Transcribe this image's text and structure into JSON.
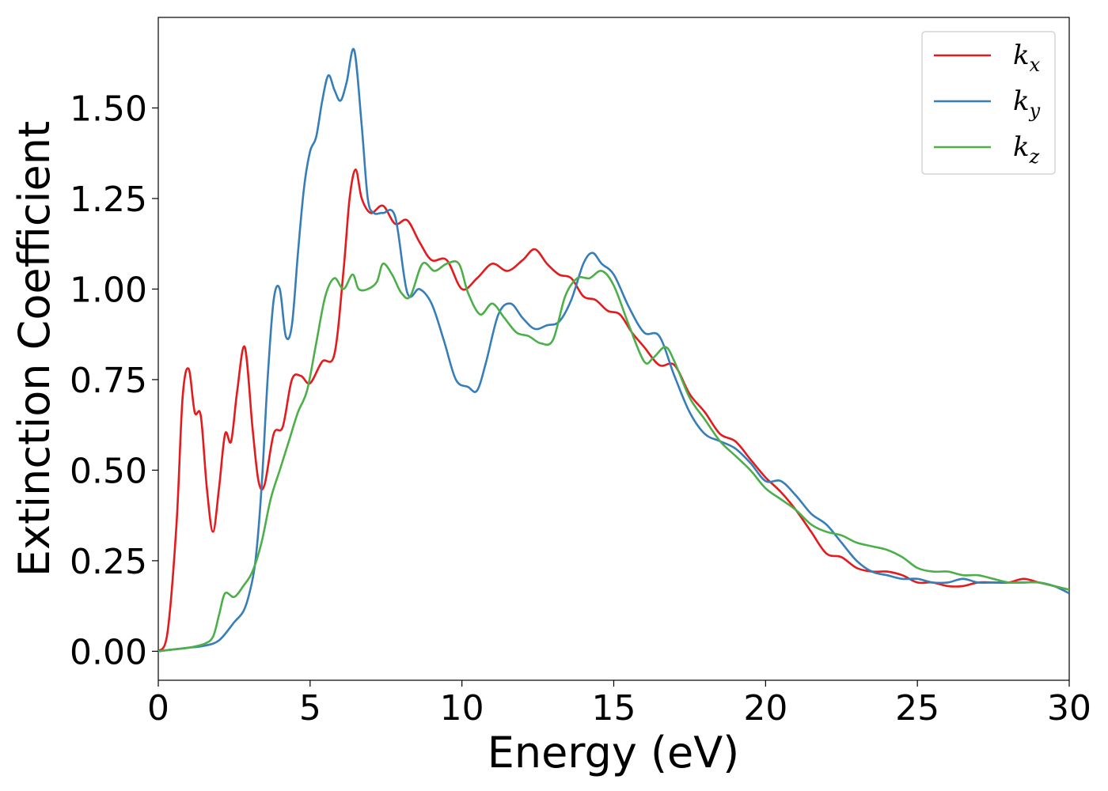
{
  "chart_data": {
    "type": "line",
    "xlabel": "Energy (eV)",
    "ylabel": "Extinction Coefficient",
    "xlim": [
      0,
      30
    ],
    "ylim": [
      -0.08,
      1.75
    ],
    "xticks": [
      0,
      5,
      10,
      15,
      20,
      25,
      30
    ],
    "xtick_labels": [
      "0",
      "5",
      "10",
      "15",
      "20",
      "25",
      "30"
    ],
    "yticks": [
      0,
      0.25,
      0.5,
      0.75,
      1.0,
      1.25,
      1.5
    ],
    "ytick_labels": [
      "0.00",
      "0.25",
      "0.50",
      "0.75",
      "1.00",
      "1.25",
      "1.50"
    ],
    "grid": false,
    "legend_position": "top-right",
    "series": [
      {
        "name": "kx",
        "label_main": "k",
        "label_sub": "x",
        "color": "#e41a1c",
        "x": [
          0,
          0.3,
          0.6,
          0.8,
          1.0,
          1.2,
          1.4,
          1.6,
          1.8,
          2.0,
          2.2,
          2.4,
          2.6,
          2.85,
          3.1,
          3.3,
          3.5,
          3.8,
          4.1,
          4.4,
          4.7,
          5.0,
          5.4,
          5.8,
          6.1,
          6.3,
          6.5,
          6.7,
          7.0,
          7.4,
          7.8,
          8.2,
          8.6,
          9.0,
          9.5,
          10.0,
          10.5,
          11.0,
          11.5,
          12.0,
          12.4,
          12.8,
          13.2,
          13.6,
          14.0,
          14.4,
          14.8,
          15.2,
          15.6,
          16.0,
          16.5,
          17.0,
          17.5,
          18.0,
          18.5,
          19.0,
          19.5,
          20.0,
          20.5,
          21.0,
          21.5,
          22.0,
          22.5,
          23.0,
          23.5,
          24.0,
          24.5,
          25.0,
          25.5,
          26.0,
          26.5,
          27.0,
          27.5,
          28.0,
          28.5,
          29.0,
          29.5,
          30.0
        ],
        "values": [
          0.0,
          0.05,
          0.35,
          0.7,
          0.78,
          0.66,
          0.65,
          0.45,
          0.33,
          0.45,
          0.6,
          0.58,
          0.72,
          0.84,
          0.62,
          0.47,
          0.46,
          0.6,
          0.62,
          0.75,
          0.76,
          0.74,
          0.8,
          0.82,
          1.05,
          1.25,
          1.33,
          1.25,
          1.21,
          1.23,
          1.18,
          1.19,
          1.13,
          1.08,
          1.08,
          1.0,
          1.03,
          1.07,
          1.05,
          1.08,
          1.11,
          1.07,
          1.04,
          1.03,
          0.98,
          0.97,
          0.94,
          0.93,
          0.88,
          0.84,
          0.79,
          0.79,
          0.71,
          0.66,
          0.6,
          0.58,
          0.53,
          0.48,
          0.44,
          0.39,
          0.33,
          0.27,
          0.26,
          0.23,
          0.22,
          0.22,
          0.21,
          0.19,
          0.19,
          0.18,
          0.18,
          0.19,
          0.19,
          0.19,
          0.2,
          0.19,
          0.18,
          0.17
        ]
      },
      {
        "name": "ky",
        "label_main": "k",
        "label_sub": "y",
        "color": "#377eb8",
        "x": [
          0,
          0.5,
          1.0,
          1.5,
          2.0,
          2.5,
          2.8,
          3.0,
          3.2,
          3.4,
          3.6,
          3.8,
          4.0,
          4.2,
          4.4,
          4.6,
          4.8,
          5.0,
          5.2,
          5.4,
          5.6,
          5.8,
          6.0,
          6.2,
          6.45,
          6.7,
          6.9,
          7.1,
          7.4,
          7.8,
          8.2,
          8.6,
          9.0,
          9.4,
          9.8,
          10.2,
          10.5,
          10.8,
          11.2,
          11.6,
          12.0,
          12.4,
          12.8,
          13.2,
          13.6,
          14.0,
          14.3,
          14.6,
          15.0,
          15.5,
          16.0,
          16.5,
          17.0,
          17.5,
          18.0,
          18.5,
          19.0,
          19.5,
          20.0,
          20.5,
          21.0,
          21.5,
          22.0,
          22.5,
          23.0,
          23.5,
          24.0,
          24.5,
          25.0,
          25.5,
          26.0,
          26.5,
          27.0,
          27.5,
          28.0,
          28.5,
          29.0,
          29.5,
          30.0
        ],
        "values": [
          0.0,
          0.005,
          0.01,
          0.015,
          0.03,
          0.08,
          0.11,
          0.16,
          0.25,
          0.45,
          0.75,
          0.97,
          1.0,
          0.87,
          0.9,
          1.1,
          1.28,
          1.38,
          1.42,
          1.52,
          1.59,
          1.55,
          1.52,
          1.57,
          1.66,
          1.45,
          1.25,
          1.21,
          1.21,
          1.2,
          0.99,
          1.0,
          0.96,
          0.86,
          0.75,
          0.73,
          0.72,
          0.8,
          0.93,
          0.96,
          0.92,
          0.89,
          0.9,
          0.91,
          0.97,
          1.07,
          1.1,
          1.07,
          1.04,
          0.95,
          0.88,
          0.87,
          0.76,
          0.66,
          0.6,
          0.58,
          0.56,
          0.52,
          0.47,
          0.47,
          0.43,
          0.38,
          0.35,
          0.3,
          0.25,
          0.22,
          0.21,
          0.2,
          0.2,
          0.19,
          0.19,
          0.2,
          0.19,
          0.19,
          0.19,
          0.19,
          0.19,
          0.18,
          0.16
        ]
      },
      {
        "name": "kz",
        "label_main": "k",
        "label_sub": "z",
        "color": "#4daf4a",
        "x": [
          0,
          0.5,
          1.0,
          1.5,
          1.8,
          2.0,
          2.2,
          2.5,
          2.8,
          3.1,
          3.4,
          3.7,
          4.0,
          4.3,
          4.6,
          4.9,
          5.2,
          5.5,
          5.8,
          6.1,
          6.4,
          6.6,
          6.9,
          7.2,
          7.4,
          7.7,
          8.0,
          8.3,
          8.7,
          9.1,
          9.5,
          9.9,
          10.2,
          10.6,
          11.0,
          11.4,
          11.8,
          12.2,
          12.6,
          13.0,
          13.4,
          13.8,
          14.2,
          14.6,
          15.0,
          15.5,
          16.0,
          16.3,
          16.7,
          17.0,
          17.5,
          18.0,
          18.5,
          19.0,
          19.5,
          20.0,
          20.5,
          21.0,
          21.5,
          22.0,
          22.5,
          23.0,
          23.5,
          24.0,
          24.5,
          25.0,
          25.5,
          26.0,
          26.5,
          27.0,
          27.5,
          28.0,
          28.5,
          29.0,
          29.5,
          30.0
        ],
        "values": [
          0.0,
          0.005,
          0.01,
          0.02,
          0.04,
          0.1,
          0.16,
          0.15,
          0.18,
          0.22,
          0.3,
          0.42,
          0.5,
          0.58,
          0.66,
          0.72,
          0.85,
          0.98,
          1.03,
          1.0,
          1.04,
          1.0,
          1.0,
          1.02,
          1.07,
          1.04,
          0.99,
          0.98,
          1.07,
          1.05,
          1.07,
          1.07,
          0.99,
          0.93,
          0.96,
          0.92,
          0.88,
          0.87,
          0.85,
          0.86,
          0.98,
          1.03,
          1.03,
          1.05,
          1.01,
          0.9,
          0.8,
          0.81,
          0.84,
          0.8,
          0.7,
          0.64,
          0.58,
          0.54,
          0.5,
          0.45,
          0.42,
          0.39,
          0.35,
          0.33,
          0.32,
          0.3,
          0.29,
          0.28,
          0.26,
          0.23,
          0.22,
          0.22,
          0.21,
          0.21,
          0.2,
          0.19,
          0.19,
          0.19,
          0.18,
          0.17
        ]
      }
    ]
  }
}
